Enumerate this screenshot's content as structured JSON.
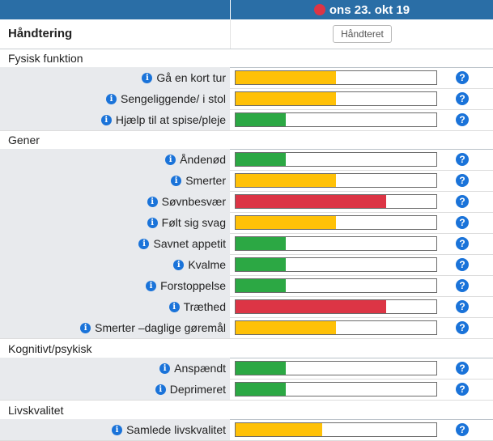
{
  "header": {
    "date": "ons 23. okt 19"
  },
  "handling": {
    "label": "Håndtering",
    "button_label": "Håndteret"
  },
  "colors": {
    "green": "#2ca844",
    "yellow": "#ffc107",
    "red": "#dc3545",
    "status_dot": "#dc3545"
  },
  "icons": {
    "info": "i",
    "help": "?"
  },
  "sections": [
    {
      "title": "Fysisk funktion",
      "items": [
        {
          "label": "Gå en kort tur",
          "level": 0.5,
          "status": "yellow"
        },
        {
          "label": "Sengeliggende/ i stol",
          "level": 0.5,
          "status": "yellow"
        },
        {
          "label": "Hjælp til at spise/pleje",
          "level": 0.25,
          "status": "green"
        }
      ]
    },
    {
      "title": "Gener",
      "items": [
        {
          "label": "Åndenød",
          "level": 0.25,
          "status": "green"
        },
        {
          "label": "Smerter",
          "level": 0.5,
          "status": "yellow"
        },
        {
          "label": "Søvnbesvær",
          "level": 0.75,
          "status": "red"
        },
        {
          "label": "Følt sig svag",
          "level": 0.5,
          "status": "yellow"
        },
        {
          "label": "Savnet appetit",
          "level": 0.25,
          "status": "green"
        },
        {
          "label": "Kvalme",
          "level": 0.25,
          "status": "green"
        },
        {
          "label": "Forstoppelse",
          "level": 0.25,
          "status": "green"
        },
        {
          "label": "Træthed",
          "level": 0.75,
          "status": "red"
        },
        {
          "label": "Smerter –daglige gøremål",
          "level": 0.5,
          "status": "yellow"
        }
      ]
    },
    {
      "title": "Kognitivt/psykisk",
      "items": [
        {
          "label": "Anspændt",
          "level": 0.25,
          "status": "green"
        },
        {
          "label": "Deprimeret",
          "level": 0.25,
          "status": "green"
        }
      ]
    },
    {
      "title": "Livskvalitet",
      "items": [
        {
          "label": "Samlede livskvalitet",
          "level": 0.43,
          "status": "yellow"
        }
      ]
    }
  ]
}
